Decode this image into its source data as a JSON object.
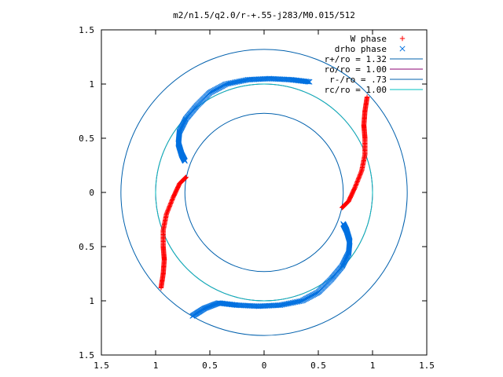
{
  "chart_data": {
    "type": "scatter",
    "title": "m2/n1.5/q2.0/r-+.55-j283/M0.015/512",
    "xlabel": "",
    "ylabel": "",
    "xlim": [
      -1.5,
      1.5
    ],
    "ylim": [
      -1.5,
      1.5
    ],
    "grid": false,
    "legend_position": "top-right",
    "x_ticks": [
      -1.5,
      -1,
      -0.5,
      0,
      0.5,
      1,
      1.5
    ],
    "y_ticks": [
      -1.5,
      -1,
      -0.5,
      0,
      0.5,
      1,
      1.5
    ],
    "x_tick_labels": [
      "1.5",
      "1",
      "0.5",
      "0",
      "0.5",
      "1",
      "1.5"
    ],
    "y_tick_labels": [
      "1.5",
      "1",
      "0.5",
      "0",
      "0.5",
      "1",
      "1.5"
    ],
    "series": [
      {
        "name": "W phase",
        "marker": "plus",
        "color": "#ff0000",
        "arms": [
          [
            [
              0.72,
              -0.14
            ],
            [
              0.78,
              -0.08
            ],
            [
              0.84,
              0.05
            ],
            [
              0.9,
              0.2
            ],
            [
              0.93,
              0.35
            ],
            [
              0.93,
              0.5
            ],
            [
              0.92,
              0.62
            ],
            [
              0.93,
              0.75
            ],
            [
              0.95,
              0.88
            ]
          ],
          [
            [
              -0.72,
              0.14
            ],
            [
              -0.78,
              0.08
            ],
            [
              -0.84,
              -0.05
            ],
            [
              -0.9,
              -0.2
            ],
            [
              -0.93,
              -0.35
            ],
            [
              -0.93,
              -0.5
            ],
            [
              -0.92,
              -0.62
            ],
            [
              -0.93,
              -0.75
            ],
            [
              -0.95,
              -0.88
            ]
          ]
        ]
      },
      {
        "name": "drho phase",
        "marker": "cross",
        "color": "#0070e0",
        "arms": [
          [
            [
              -0.73,
              0.29
            ],
            [
              -0.76,
              0.35
            ],
            [
              -0.79,
              0.45
            ],
            [
              -0.78,
              0.56
            ],
            [
              -0.72,
              0.68
            ],
            [
              -0.62,
              0.8
            ],
            [
              -0.5,
              0.92
            ],
            [
              -0.35,
              1.0
            ],
            [
              -0.15,
              1.04
            ],
            [
              0.05,
              1.05
            ],
            [
              0.25,
              1.04
            ],
            [
              0.42,
              1.02
            ]
          ],
          [
            [
              0.73,
              -0.29
            ],
            [
              0.76,
              -0.35
            ],
            [
              0.79,
              -0.45
            ],
            [
              0.78,
              -0.56
            ],
            [
              0.72,
              -0.68
            ],
            [
              0.62,
              -0.8
            ],
            [
              0.5,
              -0.92
            ],
            [
              0.35,
              -1.0
            ],
            [
              0.15,
              -1.04
            ],
            [
              -0.05,
              -1.05
            ],
            [
              -0.25,
              -1.04
            ],
            [
              -0.42,
              -1.02
            ],
            [
              -0.55,
              -1.07
            ],
            [
              -0.66,
              -1.14
            ]
          ]
        ]
      },
      {
        "name": "r+/ro = 1.32",
        "type": "circle",
        "radius": 1.32,
        "color": "#0060ad"
      },
      {
        "name": "ro/ro = 1.00",
        "type": "circle",
        "radius": 1.0,
        "color": "#8b0070"
      },
      {
        "name": "r-/ro = .73",
        "type": "circle",
        "radius": 0.73,
        "color": "#0060ad"
      },
      {
        "name": "rc/ro = 1.00",
        "type": "circle",
        "radius": 1.0,
        "color": "#00c0c0"
      }
    ]
  }
}
